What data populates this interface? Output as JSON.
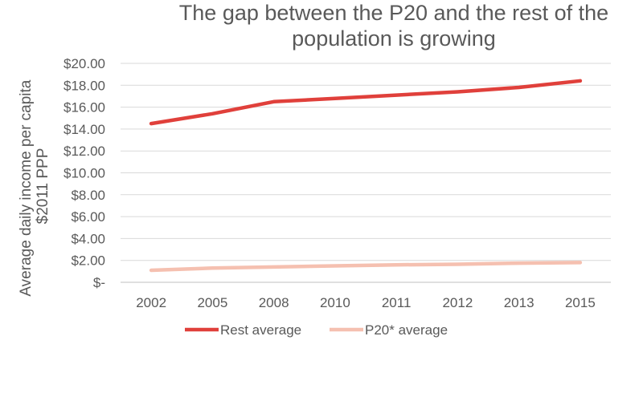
{
  "chart_data": {
    "type": "line",
    "title_lines": [
      "The gap between the P20 and the rest of the",
      "population is growing"
    ],
    "ylabel_lines": [
      "Average daily income per capita",
      "$2011 PPP"
    ],
    "xlabel": "",
    "categories": [
      "2002",
      "2005",
      "2008",
      "2010",
      "2011",
      "2012",
      "2013",
      "2015"
    ],
    "ylim": [
      0,
      20
    ],
    "yticks": [
      0,
      2,
      4,
      6,
      8,
      10,
      12,
      14,
      16,
      18,
      20
    ],
    "ytick_labels": [
      "$-",
      "$2.00",
      "$4.00",
      "$6.00",
      "$8.00",
      "$10.00",
      "$12.00",
      "$14.00",
      "$16.00",
      "$18.00",
      "$20.00"
    ],
    "grid": true,
    "legend_position": "bottom-left",
    "series": [
      {
        "name": "Rest average",
        "color": "#e0403b",
        "values": [
          14.5,
          15.4,
          16.5,
          16.8,
          17.1,
          17.4,
          17.8,
          18.4
        ]
      },
      {
        "name": "P20* average",
        "color": "#f5c0b0",
        "values": [
          1.1,
          1.3,
          1.4,
          1.5,
          1.6,
          1.65,
          1.75,
          1.8
        ]
      }
    ]
  }
}
